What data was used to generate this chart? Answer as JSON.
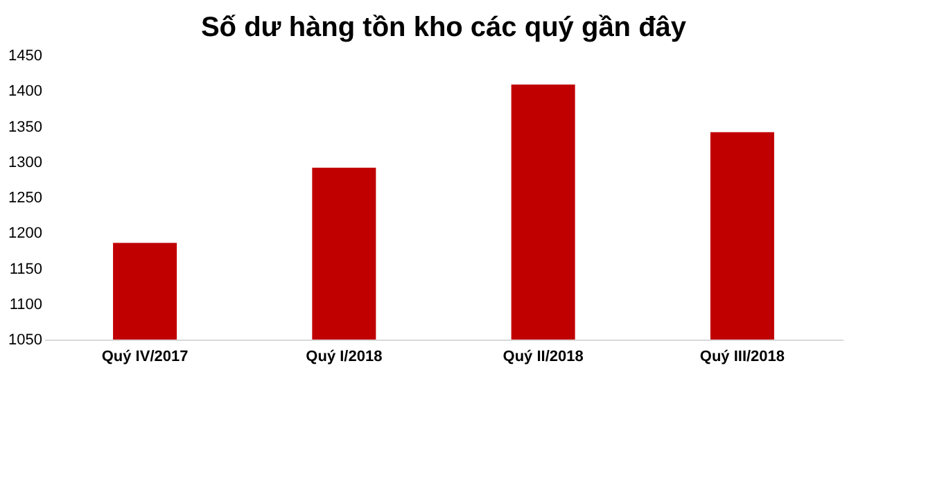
{
  "chart_data": {
    "type": "bar",
    "title": "Số dư hàng tồn kho các quý gần đây",
    "categories": [
      "Quý IV/2017",
      "Quý I/2018",
      "Quý II/2018",
      "Quý III/2018"
    ],
    "values": [
      1186,
      1292,
      1409,
      1342
    ],
    "color": "#c00000",
    "ylim": [
      1050,
      1450
    ],
    "yticks": [
      1050,
      1100,
      1150,
      1200,
      1250,
      1300,
      1350,
      1400,
      1450
    ],
    "grid": false
  }
}
